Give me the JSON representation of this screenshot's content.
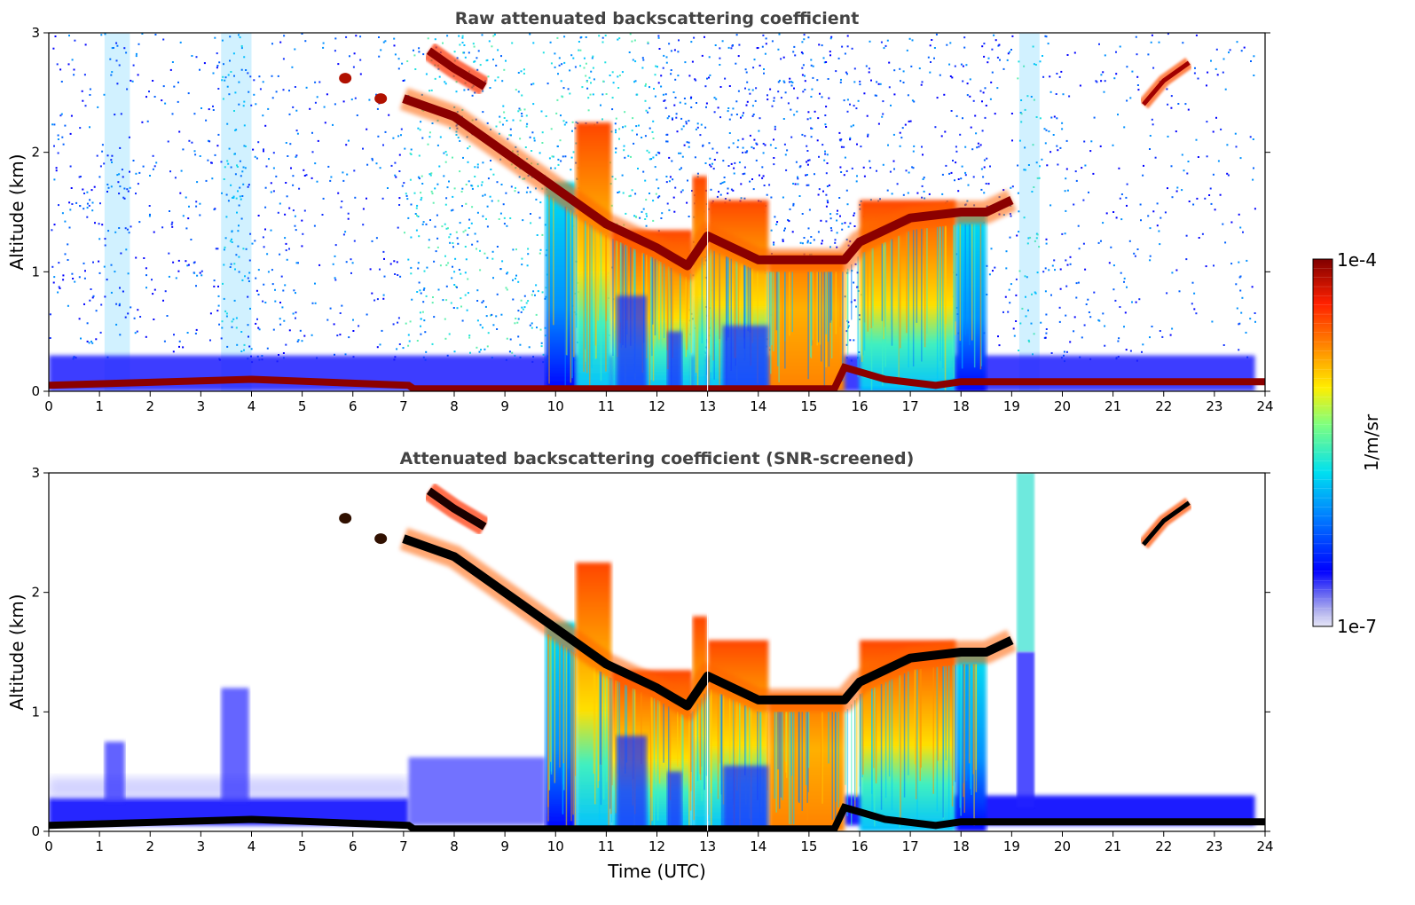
{
  "chart_data": [
    {
      "type": "heatmap",
      "title": "Raw attenuated backscattering coefficient",
      "ylabel": "Altitude (km)",
      "xlabel": "",
      "xlim": [
        0,
        24
      ],
      "ylim": [
        0,
        3
      ],
      "x_ticks": [
        "0",
        "1",
        "2",
        "3",
        "4",
        "5",
        "6",
        "7",
        "8",
        "9",
        "10",
        "11",
        "12",
        "13",
        "14",
        "15",
        "16",
        "17",
        "18",
        "19",
        "20",
        "21",
        "22",
        "23",
        "24"
      ],
      "y_ticks": [
        "0",
        "1",
        "2",
        "3"
      ],
      "screened": false
    },
    {
      "type": "heatmap",
      "title": "Attenuated backscattering coefficient (SNR-screened)",
      "ylabel": "Altitude (km)",
      "xlabel": "Time (UTC)",
      "xlim": [
        0,
        24
      ],
      "ylim": [
        0,
        3
      ],
      "x_ticks": [
        "0",
        "1",
        "2",
        "3",
        "4",
        "5",
        "6",
        "7",
        "8",
        "9",
        "10",
        "11",
        "12",
        "13",
        "14",
        "15",
        "16",
        "17",
        "18",
        "19",
        "20",
        "21",
        "22",
        "23",
        "24"
      ],
      "y_ticks": [
        "0",
        "1",
        "2",
        "3"
      ],
      "screened": true
    }
  ],
  "colorbar": {
    "label": "1/m/sr",
    "max_label": "1e-4",
    "min_label": "1e-7",
    "colormap": "jet"
  },
  "features": {
    "layer_cloud_points": [
      [
        7.0,
        2.45
      ],
      [
        8.0,
        2.3
      ],
      [
        9.0,
        2.0
      ],
      [
        10.0,
        1.7
      ],
      [
        11.0,
        1.4
      ],
      [
        12.0,
        1.2
      ],
      [
        12.6,
        1.05
      ],
      [
        13.0,
        1.3
      ],
      [
        13.5,
        1.2
      ],
      [
        14.0,
        1.1
      ],
      [
        15.7,
        1.1
      ],
      [
        16.0,
        1.25
      ],
      [
        17.0,
        1.45
      ],
      [
        18.0,
        1.5
      ],
      [
        18.5,
        1.5
      ],
      [
        19.0,
        1.6
      ]
    ],
    "upper_cloud_points": [
      [
        7.5,
        2.85
      ],
      [
        8.0,
        2.7
      ],
      [
        8.6,
        2.55
      ]
    ],
    "late_cloud_points": [
      [
        21.6,
        2.4
      ],
      [
        22.0,
        2.6
      ],
      [
        22.5,
        2.75
      ]
    ],
    "ground_layer_points": [
      [
        0,
        0.05
      ],
      [
        4.0,
        0.1
      ],
      [
        7.1,
        0.05
      ],
      [
        7.2,
        0.02
      ],
      [
        15.5,
        0.02
      ],
      [
        15.7,
        0.2
      ],
      [
        16.5,
        0.1
      ],
      [
        17.5,
        0.05
      ],
      [
        18.0,
        0.08
      ],
      [
        24,
        0.08
      ]
    ]
  }
}
